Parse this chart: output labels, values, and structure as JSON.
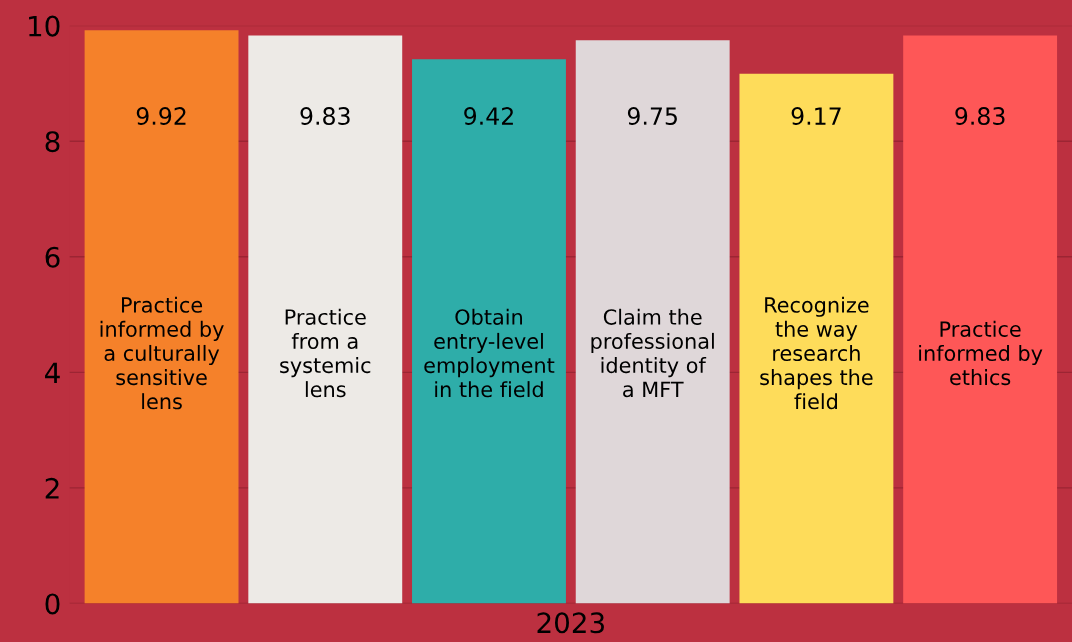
{
  "chart_data": {
    "type": "bar",
    "categories": [
      "2023"
    ],
    "series": [
      {
        "name": "Practice informed by a culturally sensitive lens",
        "color": "#f5812a",
        "values": [
          9.92
        ]
      },
      {
        "name": "Practice from a systemic lens",
        "color": "#edeae6",
        "values": [
          9.83
        ]
      },
      {
        "name": "Obtain entry-level employment in the field",
        "color": "#2eada9",
        "values": [
          9.42
        ]
      },
      {
        "name": "Claim the professional identity of a MFT",
        "color": "#dfd7d9",
        "values": [
          9.75
        ]
      },
      {
        "name": "Recognize the way research shapes the field",
        "color": "#fedc5a",
        "values": [
          9.17
        ]
      },
      {
        "name": "Practice informed by ethics",
        "color": "#fe5757",
        "values": [
          9.83
        ]
      }
    ],
    "ylim": [
      0,
      10
    ],
    "yticks": [
      0,
      2,
      4,
      6,
      8,
      10
    ],
    "grid": "y",
    "data_labels": true,
    "legend": false
  }
}
